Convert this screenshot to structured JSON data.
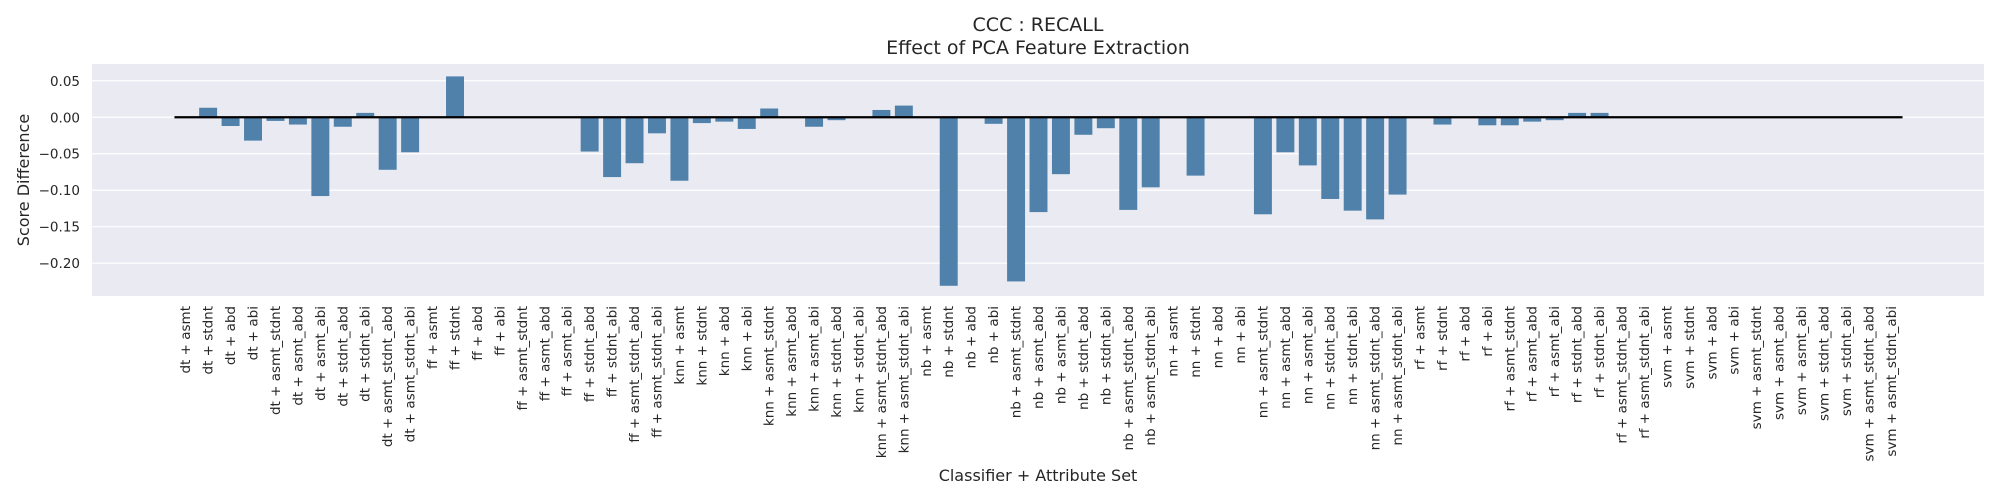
{
  "chart_data": {
    "type": "bar",
    "title": "CCC : RECALL",
    "subtitle": "Effect of PCA Feature Extraction",
    "xlabel": "Classifier + Attribute Set",
    "ylabel": "Score Difference",
    "ylim": [
      -0.245,
      0.073
    ],
    "yticks": [
      0.05,
      0.0,
      -0.05,
      -0.1,
      -0.15,
      -0.2
    ],
    "ytick_labels": [
      "0.05",
      "0.00",
      "−0.05",
      "−0.10",
      "−0.15",
      "−0.20"
    ],
    "grid": true,
    "legend": "none",
    "colors": {
      "bar": "#4f81ab",
      "background": "#eaeaf2",
      "grid": "#ffffff",
      "zero_line": "#000000"
    },
    "categories": [
      "dt + asmt",
      "dt + stdnt",
      "dt + abd",
      "dt + abi",
      "dt + asmt_stdnt",
      "dt + asmt_abd",
      "dt + asmt_abi",
      "dt + stdnt_abd",
      "dt + stdnt_abi",
      "dt + asmt_stdnt_abd",
      "dt + asmt_stdnt_abi",
      "ff + asmt",
      "ff + stdnt",
      "ff + abd",
      "ff + abi",
      "ff + asmt_stdnt",
      "ff + asmt_abd",
      "ff + asmt_abi",
      "ff + stdnt_abd",
      "ff + stdnt_abi",
      "ff + asmt_stdnt_abd",
      "ff + asmt_stdnt_abi",
      "knn + asmt",
      "knn + stdnt",
      "knn + abd",
      "knn + abi",
      "knn + asmt_stdnt",
      "knn + asmt_abd",
      "knn + asmt_abi",
      "knn + stdnt_abd",
      "knn + stdnt_abi",
      "knn + asmt_stdnt_abd",
      "knn + asmt_stdnt_abi",
      "nb + asmt",
      "nb + stdnt",
      "nb + abd",
      "nb + abi",
      "nb + asmt_stdnt",
      "nb + asmt_abd",
      "nb + asmt_abi",
      "nb + stdnt_abd",
      "nb + stdnt_abi",
      "nb + asmt_stdnt_abd",
      "nb + asmt_stdnt_abi",
      "nn + asmt",
      "nn + stdnt",
      "nn + abd",
      "nn + abi",
      "nn + asmt_stdnt",
      "nn + asmt_abd",
      "nn + asmt_abi",
      "nn + stdnt_abd",
      "nn + stdnt_abi",
      "nn + asmt_stdnt_abd",
      "nn + asmt_stdnt_abi",
      "rf + asmt",
      "rf + stdnt",
      "rf + abd",
      "rf + abi",
      "rf + asmt_stdnt",
      "rf + asmt_abd",
      "rf + asmt_abi",
      "rf + stdnt_abd",
      "rf + stdnt_abi",
      "rf + asmt_stdnt_abd",
      "rf + asmt_stdnt_abi",
      "svm + asmt",
      "svm + stdnt",
      "svm + abd",
      "svm + abi",
      "svm + asmt_stdnt",
      "svm + asmt_abd",
      "svm + asmt_abi",
      "svm + stdnt_abd",
      "svm + stdnt_abi",
      "svm + asmt_stdnt_abd",
      "svm + asmt_stdnt_abi"
    ],
    "values": [
      0.0,
      0.013,
      -0.012,
      -0.032,
      -0.005,
      -0.01,
      -0.108,
      -0.013,
      0.006,
      -0.072,
      -0.048,
      0.0,
      0.056,
      0.0,
      0.0,
      0.0,
      0.0,
      0.0,
      -0.047,
      -0.082,
      -0.063,
      -0.022,
      -0.087,
      -0.008,
      -0.006,
      -0.016,
      0.012,
      0.0,
      -0.013,
      -0.004,
      0.0,
      0.01,
      0.016,
      0.0,
      -0.231,
      0.0,
      -0.009,
      -0.225,
      -0.13,
      -0.078,
      -0.024,
      -0.015,
      -0.127,
      -0.096,
      0.0,
      -0.08,
      0.0,
      0.0,
      -0.133,
      -0.048,
      -0.066,
      -0.112,
      -0.128,
      -0.14,
      -0.106,
      0.0,
      -0.01,
      0.0,
      -0.011,
      -0.011,
      -0.006,
      -0.004,
      0.006,
      0.006,
      0.0,
      0.0,
      0.0,
      0.0,
      0.0,
      0.0,
      0.0,
      0.0,
      0.0,
      0.0,
      0.0,
      0.0,
      0.0
    ]
  }
}
